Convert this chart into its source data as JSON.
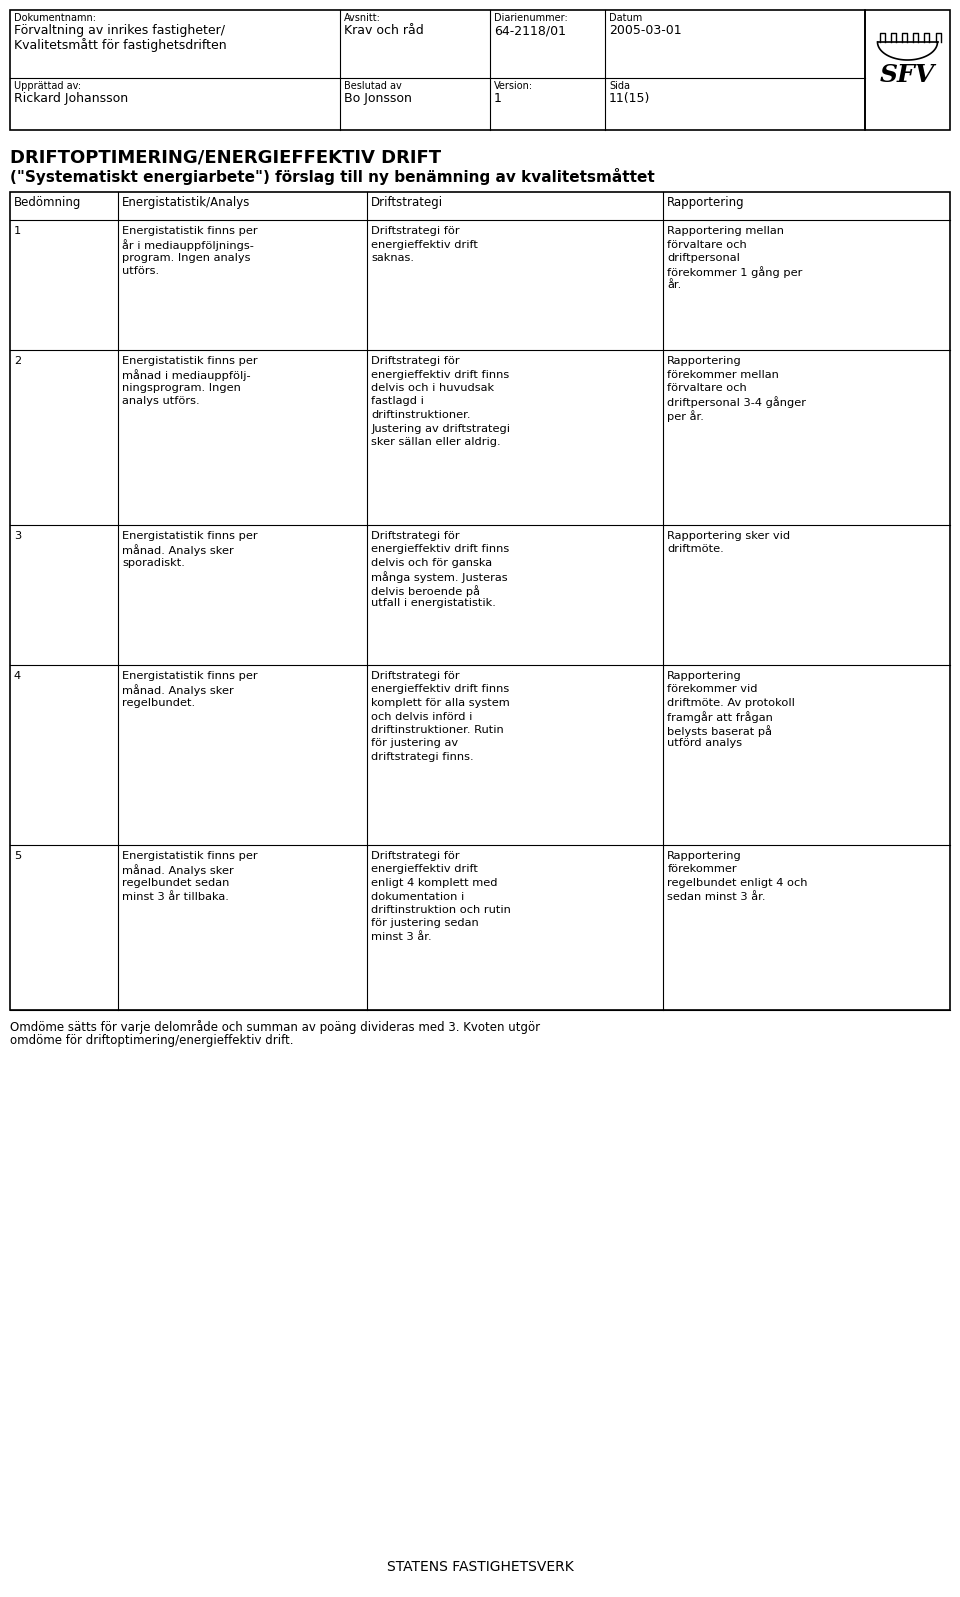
{
  "doc_label": "Dokumentnamn:",
  "doc_title_line1": "Förvaltning av inrikes fastigheter/",
  "doc_title_line2": "Kvalitetsmått för fastighetsdriften",
  "avsnitt_label": "Avsnitt:",
  "avsnitt_val": "Krav och råd",
  "diar_label": "Diarienummer:",
  "diar_val": "64-2118/01",
  "datum_label": "Datum",
  "datum_val": "2005-03-01",
  "upprattat_label": "Upprättad av:",
  "upprattat_val": "Rickard Johansson",
  "beslutad_label": "Beslutad av",
  "beslutad_val": "Bo Jonsson",
  "version_label": "Version:",
  "version_val": "1",
  "sida_label": "Sida",
  "sida_val": "11(15)",
  "main_title": "DRIFTOPTIMERING/ENERGIEFFEKTIV DRIFT",
  "sub_title": "(\"Systematiskt energiarbete\") förslag till ny benämning av kvalitetsmåttet",
  "col_headers": [
    "Bedömning",
    "Energistatistik/Analys",
    "Driftstrategi",
    "Rapportering"
  ],
  "rows": [
    {
      "bed": "1",
      "energi": "Energistatistik finns per\når i mediauppföljnings-\nprogram. Ingen analys\nutförs.",
      "drift": "Driftstrategi för\nenergieffektiv drift\nsaknas.",
      "rapp": "Rapportering mellan\nförvaltare och\ndriftpersonal\nförekommer 1 gång per\når."
    },
    {
      "bed": "2",
      "energi": "Energistatistik finns per\nmånad i mediauppfölj-\nningsprogram. Ingen\nanalys utförs.",
      "drift": "Driftstrategi för\nenergieffektiv drift finns\ndelvis och i huvudsak\nfastlagd i\ndriftinstruktioner.\nJustering av driftstrategi\nsker sällan eller aldrig.",
      "rapp": "Rapportering\nförekommer mellan\nförvaltare och\ndriftpersonal 3-4 gånger\nper år."
    },
    {
      "bed": "3",
      "energi": "Energistatistik finns per\nmånad. Analys sker\nsporadiskt.",
      "drift": "Driftstrategi för\nenergieffektiv drift finns\ndelvis och för ganska\nmånga system. Justeras\ndelvis beroende på\nutfall i energistatistik.",
      "rapp": "Rapportering sker vid\ndriftmöte."
    },
    {
      "bed": "4",
      "energi": "Energistatistik finns per\nmånad. Analys sker\nregelbundet.",
      "drift": "Driftstrategi för\nenergieffektiv drift finns\nkomplett för alla system\noch delvis införd i\ndriftinstruktioner. Rutin\nför justering av\ndriftstrategi finns.",
      "rapp": "Rapportering\nförekommer vid\ndriftmöte. Av protokoll\nframgår att frågan\nbelysts baserat på\nutförd analys"
    },
    {
      "bed": "5",
      "energi": "Energistatistik finns per\nmånad. Analys sker\nregelbundet sedan\nminst 3 år tillbaka.",
      "drift": "Driftstrategi för\nenergieffektiv drift\nenligt 4 komplett med\ndokumentation i\ndriftinstruktion och rutin\nför justering sedan\nminst 3 år.",
      "rapp": "Rapportering\nförekommer\nregelbundet enligt 4 och\nsedan minst 3 år."
    }
  ],
  "footer_line1": "Omdöme sätts för varje delområde och summan av poäng divideras med 3. Kvoten utgör",
  "footer_line2": "omdöme för driftoptimering/energieffektiv drift.",
  "bottom_text": "STATENS FASTIGHETSVERK"
}
